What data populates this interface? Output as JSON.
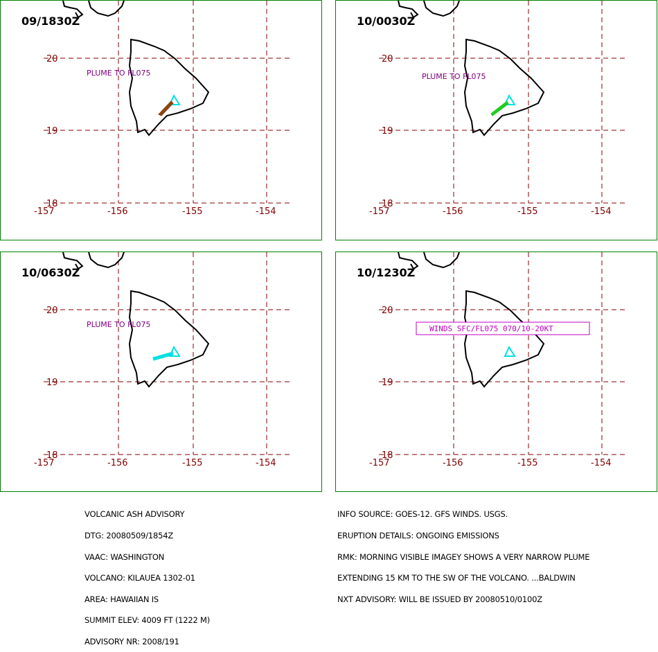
{
  "panels": [
    {
      "time": "09/1830Z",
      "note": "PLUME TO FL075",
      "plume_color": "#8b4513",
      "lat_labels": [
        "20",
        "19",
        "18"
      ],
      "lon_labels": [
        "-157",
        "-156",
        "-155",
        "-154"
      ]
    },
    {
      "time": "10/0030Z",
      "note": "PLUME TO FL075",
      "plume_color": "#22cc22",
      "lat_labels": [
        "20",
        "19",
        "18"
      ],
      "lon_labels": [
        "-157",
        "-156",
        "-155",
        "-154"
      ]
    },
    {
      "time": "10/0630Z",
      "note": "PLUME TO FL075",
      "plume_color": "#00e0e0",
      "lat_labels": [
        "20",
        "19",
        "18"
      ],
      "lon_labels": [
        "-157",
        "-156",
        "-155",
        "-154"
      ]
    },
    {
      "time": "10/1230Z",
      "wind_box": "WINDS SFC/FL075 070/10-20KT",
      "lat_labels": [
        "20",
        "19",
        "18"
      ],
      "lon_labels": [
        "-157",
        "-156",
        "-155",
        "-154"
      ]
    }
  ],
  "advisory": {
    "left": [
      "VOLCANIC ASH ADVISORY",
      "DTG: 20080509/1854Z",
      "VAAC: WASHINGTON",
      "VOLCANO: KILAUEA 1302-01",
      "AREA: HAWAIIAN IS",
      "SUMMIT ELEV: 4009 FT (1222 M)",
      "ADVISORY NR: 2008/191"
    ],
    "right": [
      "INFO SOURCE: GOES-12. GFS WINDS. USGS.",
      "ERUPTION DETAILS: ONGOING EMISSIONS",
      "RMK: MORNING VISIBLE IMAGEY SHOWS A VERY NARROW PLUME",
      "EXTENDING 15 KM TO THE SW OF THE VOLCANO. ...BALDWIN",
      "NXT ADVISORY: WILL BE ISSUED BY 20080510/0100Z"
    ]
  },
  "colors": {
    "border": "#008000",
    "grid": "#800000",
    "note": "#800080",
    "volcano": "#00e0e0",
    "wind_box": "#c000c0"
  }
}
